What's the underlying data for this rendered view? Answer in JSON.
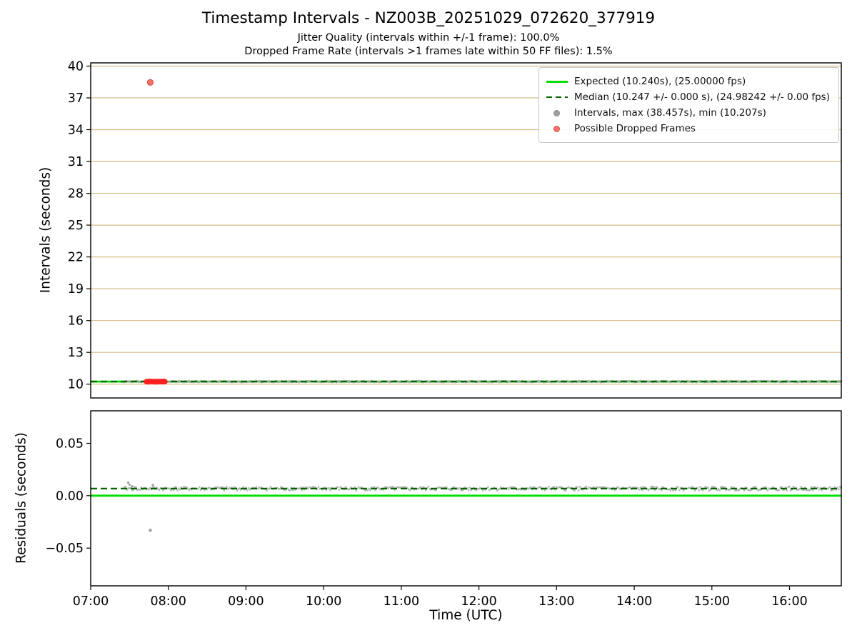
{
  "title": "Timestamp Intervals - NZ003B_20251029_072620_377919",
  "subtitle1": "Jitter Quality (intervals within +/-1 frame): 100.0%",
  "subtitle2": "Dropped Frame Rate (intervals >1 frames late within 50 FF files): 1.5%",
  "xlabel": "Time (UTC)",
  "colors": {
    "expected_green": "#00dd00",
    "median_dark_green": "#006400",
    "intervals_gray": "#a0a0a0",
    "dropped_red": "#ff2222",
    "dropped_marker_salmon": "#f4736b",
    "grid_tan": "#d7bd84"
  },
  "legend": {
    "items": [
      {
        "marker": "line-solid",
        "color": "#00dd00",
        "label": "Expected (10.240s), (25.00000 fps)"
      },
      {
        "marker": "line-dashed",
        "color": "#006400",
        "label": "Median (10.247 +/- 0.000 s), (24.98242 +/- 0.00 fps)"
      },
      {
        "marker": "dot",
        "color": "#a0a0a0",
        "edge": "#8c8c8c",
        "label": "Intervals, max (38.457s), min (10.207s)"
      },
      {
        "marker": "dot",
        "color": "#f4736b",
        "edge": "#d94f43",
        "label": "Possible Dropped Frames"
      }
    ]
  },
  "chart_data": [
    {
      "id": "intervals",
      "type": "scatter",
      "ylabel": "Intervals (seconds)",
      "ylim": [
        8.7,
        40.3
      ],
      "yticks": [
        10,
        13,
        16,
        19,
        22,
        25,
        28,
        31,
        34,
        37,
        40
      ],
      "ytick_labels": [
        "10",
        "13",
        "16",
        "19",
        "22",
        "25",
        "28",
        "31",
        "34",
        "37",
        "40"
      ],
      "xlim": [
        420,
        1000
      ],
      "xticks": [
        420,
        480,
        540,
        600,
        660,
        720,
        780,
        840,
        900,
        960
      ],
      "xtick_labels": [
        "07:00",
        "08:00",
        "09:00",
        "10:00",
        "11:00",
        "12:00",
        "13:00",
        "14:00",
        "15:00",
        "16:00"
      ],
      "show_x_tick_labels": false,
      "grid_color": "#d7bd84",
      "lines": [
        {
          "name": "expected",
          "y": 10.24,
          "color": "#00dd00",
          "style": "solid",
          "width": 2.8
        },
        {
          "name": "median",
          "y": 10.247,
          "color": "#006400",
          "style": "dashed",
          "width": 2.2
        }
      ],
      "band": {
        "name": "intervals-band",
        "x_start": 446,
        "x_end": 1000,
        "step": 1,
        "y": 10.247,
        "jitter": 0.05,
        "color": "#a0a0a0",
        "r": 1.6,
        "opacity": 0.75,
        "seed": 97
      },
      "segments": [
        {
          "name": "dropped-frames-segment",
          "x_start": 463,
          "x_end": 478,
          "step": 0.6,
          "y": 10.245,
          "jitter": 0.03,
          "color": "#ff2222",
          "r": 3.8,
          "opacity": 0.95
        }
      ],
      "points": [
        {
          "name": "dropped-outlier",
          "x": 466,
          "y": 38.457,
          "color": "#f4736b",
          "edge": "#d94f43",
          "r": 4
        }
      ],
      "stats": {
        "expected_interval_s": 10.24,
        "expected_fps": 25.0,
        "median_interval_s": 10.247,
        "median_fps": 24.98242,
        "max_interval_s": 38.457,
        "min_interval_s": 10.207,
        "jitter_quality_pct": 100.0,
        "dropped_frame_rate_pct": 1.5
      }
    },
    {
      "id": "residuals",
      "type": "scatter",
      "ylabel": "Residuals (seconds)",
      "ylim": [
        -0.086,
        0.081
      ],
      "yticks": [
        -0.05,
        0,
        0.05
      ],
      "ytick_labels": [
        "−0.05",
        "0.00",
        "0.05"
      ],
      "xlim": [
        420,
        1000
      ],
      "xticks": [
        420,
        480,
        540,
        600,
        660,
        720,
        780,
        840,
        900,
        960
      ],
      "xtick_labels": [
        "07:00",
        "08:00",
        "09:00",
        "10:00",
        "11:00",
        "12:00",
        "13:00",
        "14:00",
        "15:00",
        "16:00"
      ],
      "show_x_tick_labels": true,
      "grid_color": null,
      "lines": [
        {
          "name": "zero-expected",
          "y": 0.0,
          "color": "#00dd00",
          "style": "solid",
          "width": 2.8
        },
        {
          "name": "median-residual",
          "y": 0.0068,
          "color": "#006400",
          "style": "dashed",
          "width": 2.2
        }
      ],
      "band": {
        "name": "residuals-band",
        "x_start": 446,
        "x_end": 1000,
        "step": 1,
        "y": 0.0068,
        "jitter": 0.0018,
        "color": "#a0a0a0",
        "r": 1.4,
        "opacity": 0.75,
        "seed": 41
      },
      "segments": [],
      "points": [
        {
          "name": "residual-outlier",
          "x": 466,
          "y": -0.033,
          "color": "#9e9e9e",
          "r": 2.2
        },
        {
          "name": "start-spike-1",
          "x": 449,
          "y": 0.0125,
          "color": "#9e9e9e",
          "r": 1.6
        },
        {
          "name": "start-spike-2",
          "x": 450,
          "y": 0.0105,
          "color": "#9e9e9e",
          "r": 1.6
        },
        {
          "name": "start-spike-3",
          "x": 452,
          "y": 0.009,
          "color": "#9e9e9e",
          "r": 1.6
        },
        {
          "name": "mid-spike",
          "x": 468,
          "y": 0.0102,
          "color": "#9e9e9e",
          "r": 1.6
        }
      ]
    }
  ]
}
